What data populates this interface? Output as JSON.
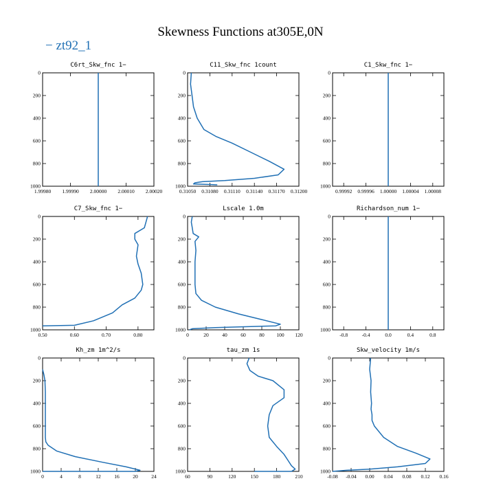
{
  "figure": {
    "title": "Skewness Functions at305E,0N",
    "legend": {
      "label": "zt92_1",
      "color": "#1f6fb4"
    }
  },
  "chart_data": [
    {
      "type": "line",
      "title": "C6rt_Skw_fnc   1−",
      "xlim": [
        1.9998,
        2.0002
      ],
      "ylim": [
        1000,
        0
      ],
      "xticks": [
        1.9998,
        1.9999,
        2.0,
        2.0001,
        2.0002
      ],
      "xtick_labels": [
        "1.99980",
        "1.99990",
        "2.00000",
        "2.00010",
        "2.00020"
      ],
      "yticks": [
        0,
        200,
        400,
        600,
        800,
        1000
      ],
      "ytick_labels": [
        "0",
        "200",
        "400",
        "600",
        "800",
        "1000"
      ],
      "series": [
        {
          "x": [
            2.0,
            2.0
          ],
          "y": [
            0,
            1000
          ]
        }
      ]
    },
    {
      "type": "line",
      "title": "C11_Skw_fnc   1count",
      "xlim": [
        0.3105,
        0.312
      ],
      "ylim": [
        1000,
        0
      ],
      "xticks": [
        0.3105,
        0.3108,
        0.3111,
        0.3114,
        0.3117,
        0.312
      ],
      "xtick_labels": [
        "0.31050",
        "0.31080",
        "0.31110",
        "0.31140",
        "0.31170",
        "0.31200"
      ],
      "yticks": [
        0,
        200,
        400,
        600,
        800,
        1000
      ],
      "ytick_labels": [
        "0",
        "200",
        "400",
        "600",
        "800",
        "1000"
      ],
      "series": [
        {
          "x": [
            0.31055,
            0.31054,
            0.31056,
            0.31058,
            0.31063,
            0.31072,
            0.31088,
            0.3111,
            0.31135,
            0.3116,
            0.3118,
            0.31172,
            0.3114,
            0.311,
            0.3107,
            0.3106,
            0.31058,
            0.3108,
            0.3109
          ],
          "y": [
            0,
            100,
            200,
            300,
            400,
            500,
            560,
            620,
            700,
            780,
            850,
            900,
            930,
            950,
            960,
            970,
            980,
            985,
            988
          ]
        }
      ]
    },
    {
      "type": "line",
      "title": "C1_Skw_fnc   1−",
      "xlim": [
        0.9999,
        1.0001
      ],
      "ylim": [
        1000,
        0
      ],
      "xticks": [
        0.99992,
        0.99996,
        1.0,
        1.00004,
        1.00008
      ],
      "xtick_labels": [
        "0.99992",
        "0.99996",
        "1.00000",
        "1.00004",
        "1.00008"
      ],
      "yticks": [
        0,
        200,
        400,
        600,
        800,
        1000
      ],
      "ytick_labels": [
        "0",
        "200",
        "400",
        "600",
        "800",
        "1000"
      ],
      "series": [
        {
          "x": [
            1.0,
            1.0
          ],
          "y": [
            0,
            1000
          ]
        }
      ]
    },
    {
      "type": "line",
      "title": "C7_Skw_fnc   1−",
      "xlim": [
        0.5,
        0.85
      ],
      "ylim": [
        1000,
        0
      ],
      "xticks": [
        0.5,
        0.6,
        0.7,
        0.8
      ],
      "xtick_labels": [
        "0.50",
        "0.60",
        "0.70",
        "0.80"
      ],
      "yticks": [
        0,
        200,
        400,
        600,
        800,
        1000
      ],
      "ytick_labels": [
        "0",
        "200",
        "400",
        "600",
        "800",
        "1000"
      ],
      "series": [
        {
          "x": [
            0.83,
            0.825,
            0.82,
            0.79,
            0.79,
            0.8,
            0.795,
            0.8,
            0.81,
            0.815,
            0.81,
            0.79,
            0.75,
            0.72,
            0.66,
            0.6,
            0.5
          ],
          "y": [
            0,
            50,
            100,
            150,
            200,
            250,
            350,
            420,
            500,
            600,
            650,
            720,
            780,
            850,
            920,
            960,
            965
          ]
        }
      ]
    },
    {
      "type": "line",
      "title": "Lscale   1.0m",
      "xlim": [
        0,
        120
      ],
      "ylim": [
        1000,
        0
      ],
      "xticks": [
        0,
        20,
        40,
        60,
        80,
        100,
        120
      ],
      "xtick_labels": [
        "0",
        "20",
        "40",
        "60",
        "80",
        "100",
        "120"
      ],
      "yticks": [
        0,
        200,
        400,
        600,
        800,
        1000
      ],
      "ytick_labels": [
        "0",
        "200",
        "400",
        "600",
        "800",
        "1000"
      ],
      "series": [
        {
          "x": [
            5,
            4,
            5,
            6,
            12,
            8,
            9,
            8,
            8,
            8,
            9,
            15,
            30,
            55,
            80,
            100,
            95,
            30,
            5,
            2
          ],
          "y": [
            0,
            50,
            100,
            150,
            180,
            220,
            300,
            400,
            500,
            600,
            680,
            740,
            800,
            860,
            910,
            950,
            965,
            980,
            990,
            1000
          ]
        }
      ]
    },
    {
      "type": "line",
      "title": "Richardson_num   1−",
      "xlim": [
        -1,
        1
      ],
      "ylim": [
        1000,
        0
      ],
      "xticks": [
        -0.8,
        -0.4,
        0.0,
        0.4,
        0.8
      ],
      "xtick_labels": [
        "-0.8",
        "-0.4",
        "0.0",
        "0.4",
        "0.8"
      ],
      "yticks": [
        0,
        200,
        400,
        600,
        800,
        1000
      ],
      "ytick_labels": [
        "0",
        "200",
        "400",
        "600",
        "800",
        "1000"
      ],
      "series": [
        {
          "x": [
            0,
            0
          ],
          "y": [
            0,
            1000
          ]
        }
      ]
    },
    {
      "type": "line",
      "title": "Kh_zm   1m^2/s",
      "xlim": [
        0,
        24
      ],
      "ylim": [
        1000,
        0
      ],
      "xticks": [
        0,
        4,
        8,
        12,
        16,
        20,
        24
      ],
      "xtick_labels": [
        "0",
        "4",
        "8",
        "12",
        "16",
        "20",
        "24"
      ],
      "yticks": [
        0,
        200,
        400,
        600,
        800,
        1000
      ],
      "ytick_labels": [
        "0",
        "200",
        "400",
        "600",
        "800",
        "1000"
      ],
      "series": [
        {
          "x": [
            0,
            0.3,
            0.5,
            0.6,
            0.6,
            0.6,
            0.6,
            0.6,
            0.7,
            1.2,
            3,
            7,
            13,
            18,
            21,
            20,
            5,
            0
          ],
          "y": [
            100,
            150,
            200,
            300,
            400,
            500,
            600,
            700,
            740,
            770,
            820,
            870,
            920,
            960,
            990,
            1000,
            1000,
            1000
          ]
        }
      ]
    },
    {
      "type": "line",
      "title": "tau_zm   1s",
      "xlim": [
        60,
        210
      ],
      "ylim": [
        1000,
        0
      ],
      "xticks": [
        60,
        90,
        120,
        150,
        180,
        210
      ],
      "xtick_labels": [
        "60",
        "90",
        "120",
        "150",
        "180",
        "210"
      ],
      "yticks": [
        0,
        200,
        400,
        600,
        800,
        1000
      ],
      "ytick_labels": [
        "0",
        "200",
        "400",
        "600",
        "800",
        "1000"
      ],
      "series": [
        {
          "x": [
            143,
            140,
            144,
            155,
            175,
            190,
            190,
            175,
            170,
            168,
            170,
            180,
            190,
            195,
            200,
            205,
            200,
            150
          ],
          "y": [
            0,
            50,
            110,
            160,
            200,
            280,
            350,
            420,
            500,
            600,
            700,
            780,
            850,
            900,
            950,
            980,
            1000,
            1000
          ]
        }
      ]
    },
    {
      "type": "line",
      "title": "Skw_velocity   1m/s",
      "xlim": [
        -0.08,
        0.16
      ],
      "ylim": [
        1000,
        0
      ],
      "xticks": [
        -0.08,
        -0.04,
        0.0,
        0.04,
        0.08,
        0.12,
        0.16
      ],
      "xtick_labels": [
        "-0.08",
        "-0.04",
        "0.00",
        "0.04",
        "0.08",
        "0.12",
        "0.16"
      ],
      "yticks": [
        0,
        200,
        400,
        600,
        800,
        1000
      ],
      "ytick_labels": [
        "0",
        "200",
        "400",
        "600",
        "800",
        "1000"
      ],
      "series": [
        {
          "x": [
            0.002,
            0.0,
            0.003,
            0.002,
            0.004,
            0.003,
            0.005,
            0.005,
            0.01,
            0.03,
            0.06,
            0.1,
            0.13,
            0.12,
            0.06,
            0.0,
            -0.05,
            -0.08
          ],
          "y": [
            0,
            100,
            200,
            300,
            400,
            450,
            500,
            550,
            600,
            700,
            780,
            840,
            890,
            930,
            960,
            980,
            990,
            1000
          ]
        }
      ]
    }
  ]
}
